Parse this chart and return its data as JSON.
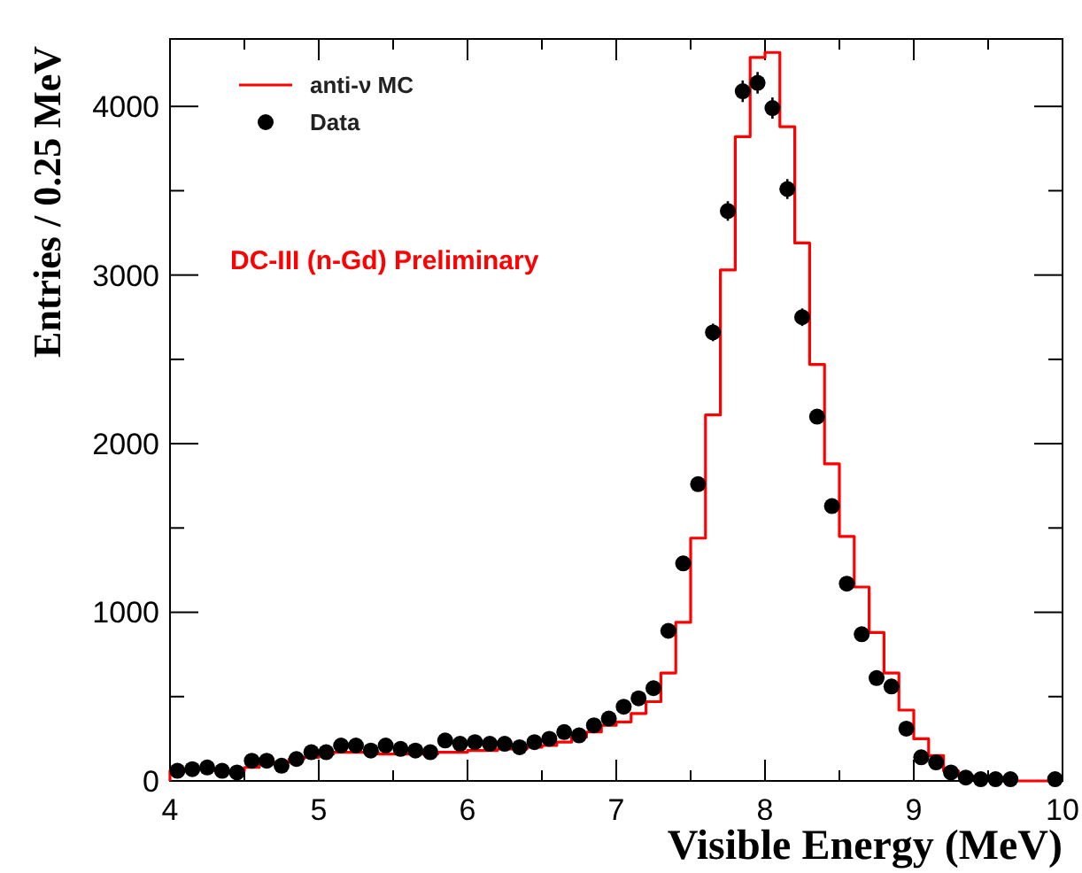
{
  "chart_data": {
    "type": "histogram",
    "xlabel": "Visible Energy (MeV)",
    "ylabel": "Entries / 0.25 MeV",
    "annotations": [
      "DC-III (n-Gd) Preliminary"
    ],
    "xlim": [
      4,
      10
    ],
    "ylim": [
      0,
      4400
    ],
    "xticks": [
      4,
      {
        "value": 4.5,
        "label": null
      },
      5,
      {
        "value": 5.5,
        "label": null
      },
      6,
      {
        "value": 6.5,
        "label": null
      },
      7,
      {
        "value": 7.5,
        "label": null
      },
      8,
      {
        "value": 8.5,
        "label": null
      },
      9,
      {
        "value": 9.5,
        "label": null
      },
      10
    ],
    "yticks": [
      0,
      {
        "value": 500,
        "label": null
      },
      1000,
      {
        "value": 1500,
        "label": null
      },
      2000,
      {
        "value": 2500,
        "label": null
      },
      3000,
      {
        "value": 3500,
        "label": null
      },
      4000
    ],
    "grid": false,
    "legend": "top left",
    "marker": "circle",
    "series": [
      {
        "name": "anti-ν MC",
        "type": "histogram",
        "color": "#ff0000",
        "bins": [
          4,
          4.1,
          4.2,
          4.3,
          4.4,
          4.5,
          4.6,
          4.7,
          4.8,
          4.9,
          5,
          5.1,
          5.2,
          5.3,
          5.4,
          5.5,
          5.6,
          5.7,
          5.8,
          5.9,
          6,
          6.1,
          6.2,
          6.3,
          6.4,
          6.5,
          6.6,
          6.7,
          6.8,
          6.9,
          7,
          7.1,
          7.2,
          7.3,
          7.4,
          7.5,
          7.6,
          7.7,
          7.8,
          7.9,
          8,
          8.1,
          8.2,
          8.3,
          8.4,
          8.5,
          8.6,
          8.7,
          8.8,
          8.9,
          9,
          9.1,
          9.2,
          9.3,
          9.4,
          9.5,
          9.6,
          9.7,
          9.8,
          9.9,
          10
        ],
        "values": [
          60,
          70,
          70,
          60,
          60,
          80,
          100,
          110,
          130,
          140,
          160,
          170,
          170,
          170,
          160,
          160,
          160,
          160,
          170,
          170,
          180,
          180,
          190,
          190,
          200,
          210,
          230,
          260,
          290,
          330,
          350,
          400,
          470,
          640,
          940,
          1440,
          2170,
          3030,
          3820,
          4290,
          4320,
          3880,
          3190,
          2470,
          1880,
          1450,
          1150,
          880,
          640,
          420,
          250,
          150,
          60,
          30,
          10,
          10,
          0,
          0,
          0,
          0
        ]
      },
      {
        "name": "Data",
        "type": "scatter",
        "color": "#000000",
        "x": [
          4.05,
          4.15,
          4.25,
          4.35,
          4.45,
          4.55,
          4.65,
          4.75,
          4.85,
          4.95,
          5.05,
          5.15,
          5.25,
          5.35,
          5.45,
          5.55,
          5.65,
          5.75,
          5.85,
          5.95,
          6.05,
          6.15,
          6.25,
          6.35,
          6.45,
          6.55,
          6.65,
          6.75,
          6.85,
          6.95,
          7.05,
          7.15,
          7.25,
          7.35,
          7.45,
          7.55,
          7.65,
          7.75,
          7.85,
          7.95,
          8.05,
          8.15,
          8.25,
          8.35,
          8.45,
          8.55,
          8.65,
          8.75,
          8.85,
          8.95,
          9.05,
          9.15,
          9.25,
          9.35,
          9.45,
          9.55,
          9.65,
          9.75,
          9.85,
          9.95
        ],
        "values": [
          60,
          70,
          80,
          60,
          50,
          120,
          120,
          90,
          130,
          170,
          170,
          210,
          210,
          180,
          210,
          190,
          180,
          170,
          240,
          220,
          230,
          220,
          220,
          200,
          230,
          250,
          290,
          270,
          330,
          370,
          440,
          490,
          550,
          890,
          1290,
          1760,
          2660,
          3380,
          4090,
          4140,
          3990,
          3510,
          2750,
          2160,
          1630,
          1170,
          870,
          610,
          560,
          310,
          140,
          110,
          50,
          20,
          10,
          10,
          10,
          null,
          null,
          10
        ],
        "errors": [
          null,
          null,
          null,
          null,
          null,
          null,
          null,
          null,
          null,
          null,
          null,
          null,
          null,
          null,
          null,
          null,
          null,
          null,
          null,
          null,
          null,
          null,
          null,
          null,
          null,
          null,
          null,
          null,
          null,
          null,
          null,
          null,
          null,
          null,
          null,
          null,
          52,
          58,
          64,
          64,
          63,
          59,
          52,
          null,
          null,
          null,
          null,
          null,
          null,
          null,
          null,
          null,
          null,
          null,
          null,
          null,
          null,
          null,
          null,
          null
        ]
      }
    ]
  }
}
